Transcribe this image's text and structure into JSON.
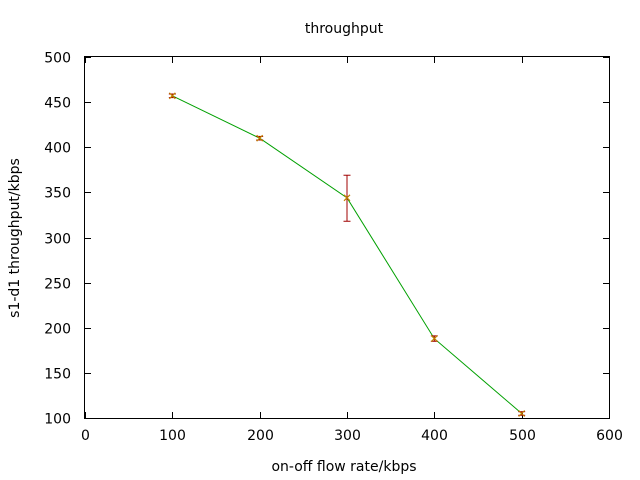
{
  "chart_data": {
    "type": "line",
    "title": "throughput",
    "xlabel": "on-off flow rate/kbps",
    "ylabel": "s1-d1 throughput/kbps",
    "xlim": [
      0,
      600
    ],
    "ylim": [
      100,
      500
    ],
    "xticks": [
      0,
      100,
      200,
      300,
      400,
      500,
      600
    ],
    "yticks": [
      100,
      150,
      200,
      250,
      300,
      350,
      400,
      450,
      500
    ],
    "grid": false,
    "legend": "none",
    "line_color": "#00a000",
    "errorbar_color": "#a00000",
    "marker_color": "#c08000",
    "series": [
      {
        "x": [
          100,
          200,
          300,
          400,
          500
        ],
        "y": [
          457,
          410,
          344,
          188,
          105
        ],
        "y_err_low": [
          455,
          408,
          318,
          185,
          103
        ],
        "y_err_high": [
          459,
          412,
          369,
          191,
          107
        ]
      }
    ]
  }
}
